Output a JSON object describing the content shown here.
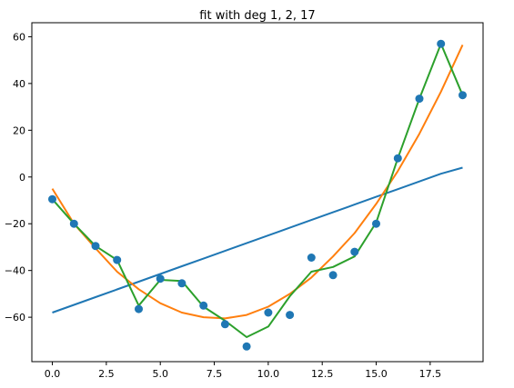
{
  "chart_data": {
    "type": "scatter",
    "title": "fit with deg 1, 2, 17",
    "xlabel": "",
    "ylabel": "",
    "xlim": [
      -0.95,
      19.95
    ],
    "ylim": [
      -79,
      66
    ],
    "grid": false,
    "x_ticks": [
      {
        "value": 0,
        "label": "0.0"
      },
      {
        "value": 2.5,
        "label": "2.5"
      },
      {
        "value": 5,
        "label": "5.0"
      },
      {
        "value": 7.5,
        "label": "7.5"
      },
      {
        "value": 10,
        "label": "10.0"
      },
      {
        "value": 12.5,
        "label": "12.5"
      },
      {
        "value": 15,
        "label": "15.0"
      },
      {
        "value": 17.5,
        "label": "17.5"
      }
    ],
    "y_ticks": [
      {
        "value": 60,
        "label": "60"
      },
      {
        "value": 40,
        "label": "40"
      },
      {
        "value": 20,
        "label": "20"
      },
      {
        "value": 0,
        "label": "0"
      },
      {
        "value": -20,
        "label": "−20"
      },
      {
        "value": -40,
        "label": "−40"
      },
      {
        "value": -60,
        "label": "−60"
      }
    ],
    "x": [
      0,
      1,
      2,
      3,
      4,
      5,
      6,
      7,
      8,
      9,
      10,
      11,
      12,
      13,
      14,
      15,
      16,
      17,
      18,
      19
    ],
    "points": {
      "color": "#1f77b4",
      "values": [
        -9.5,
        -20,
        -29.5,
        -35.5,
        -56.5,
        -43.5,
        -45.5,
        -55,
        -63,
        -72.5,
        -58,
        -59,
        -34.5,
        -42,
        -32,
        -20,
        8,
        33.5,
        57,
        35
      ]
    },
    "series": [
      {
        "color": "#1f77b4",
        "values": [
          -58,
          -54.7,
          -51.4,
          -48.1,
          -44.8,
          -41.5,
          -38.2,
          -34.9,
          -31.6,
          -28.3,
          -25,
          -21.7,
          -18.4,
          -15.1,
          -11.8,
          -8.5,
          -5.2,
          -1.9,
          1.4,
          4.0
        ]
      },
      {
        "color": "#ff7f0e",
        "values": [
          -5,
          -20,
          -30.5,
          -40.5,
          -48,
          -54,
          -58,
          -60,
          -60.5,
          -59,
          -55.5,
          -50,
          -43,
          -34,
          -24,
          -11.5,
          2.5,
          18.5,
          36.5,
          56.5
        ]
      },
      {
        "color": "#2ca02c",
        "values": [
          -9.5,
          -20,
          -29.5,
          -35.5,
          -55,
          -44,
          -44.5,
          -55.5,
          -61.5,
          -68.5,
          -64,
          -51,
          -40.5,
          -38.5,
          -34,
          -19.5,
          8,
          33.5,
          57,
          35
        ]
      }
    ]
  }
}
